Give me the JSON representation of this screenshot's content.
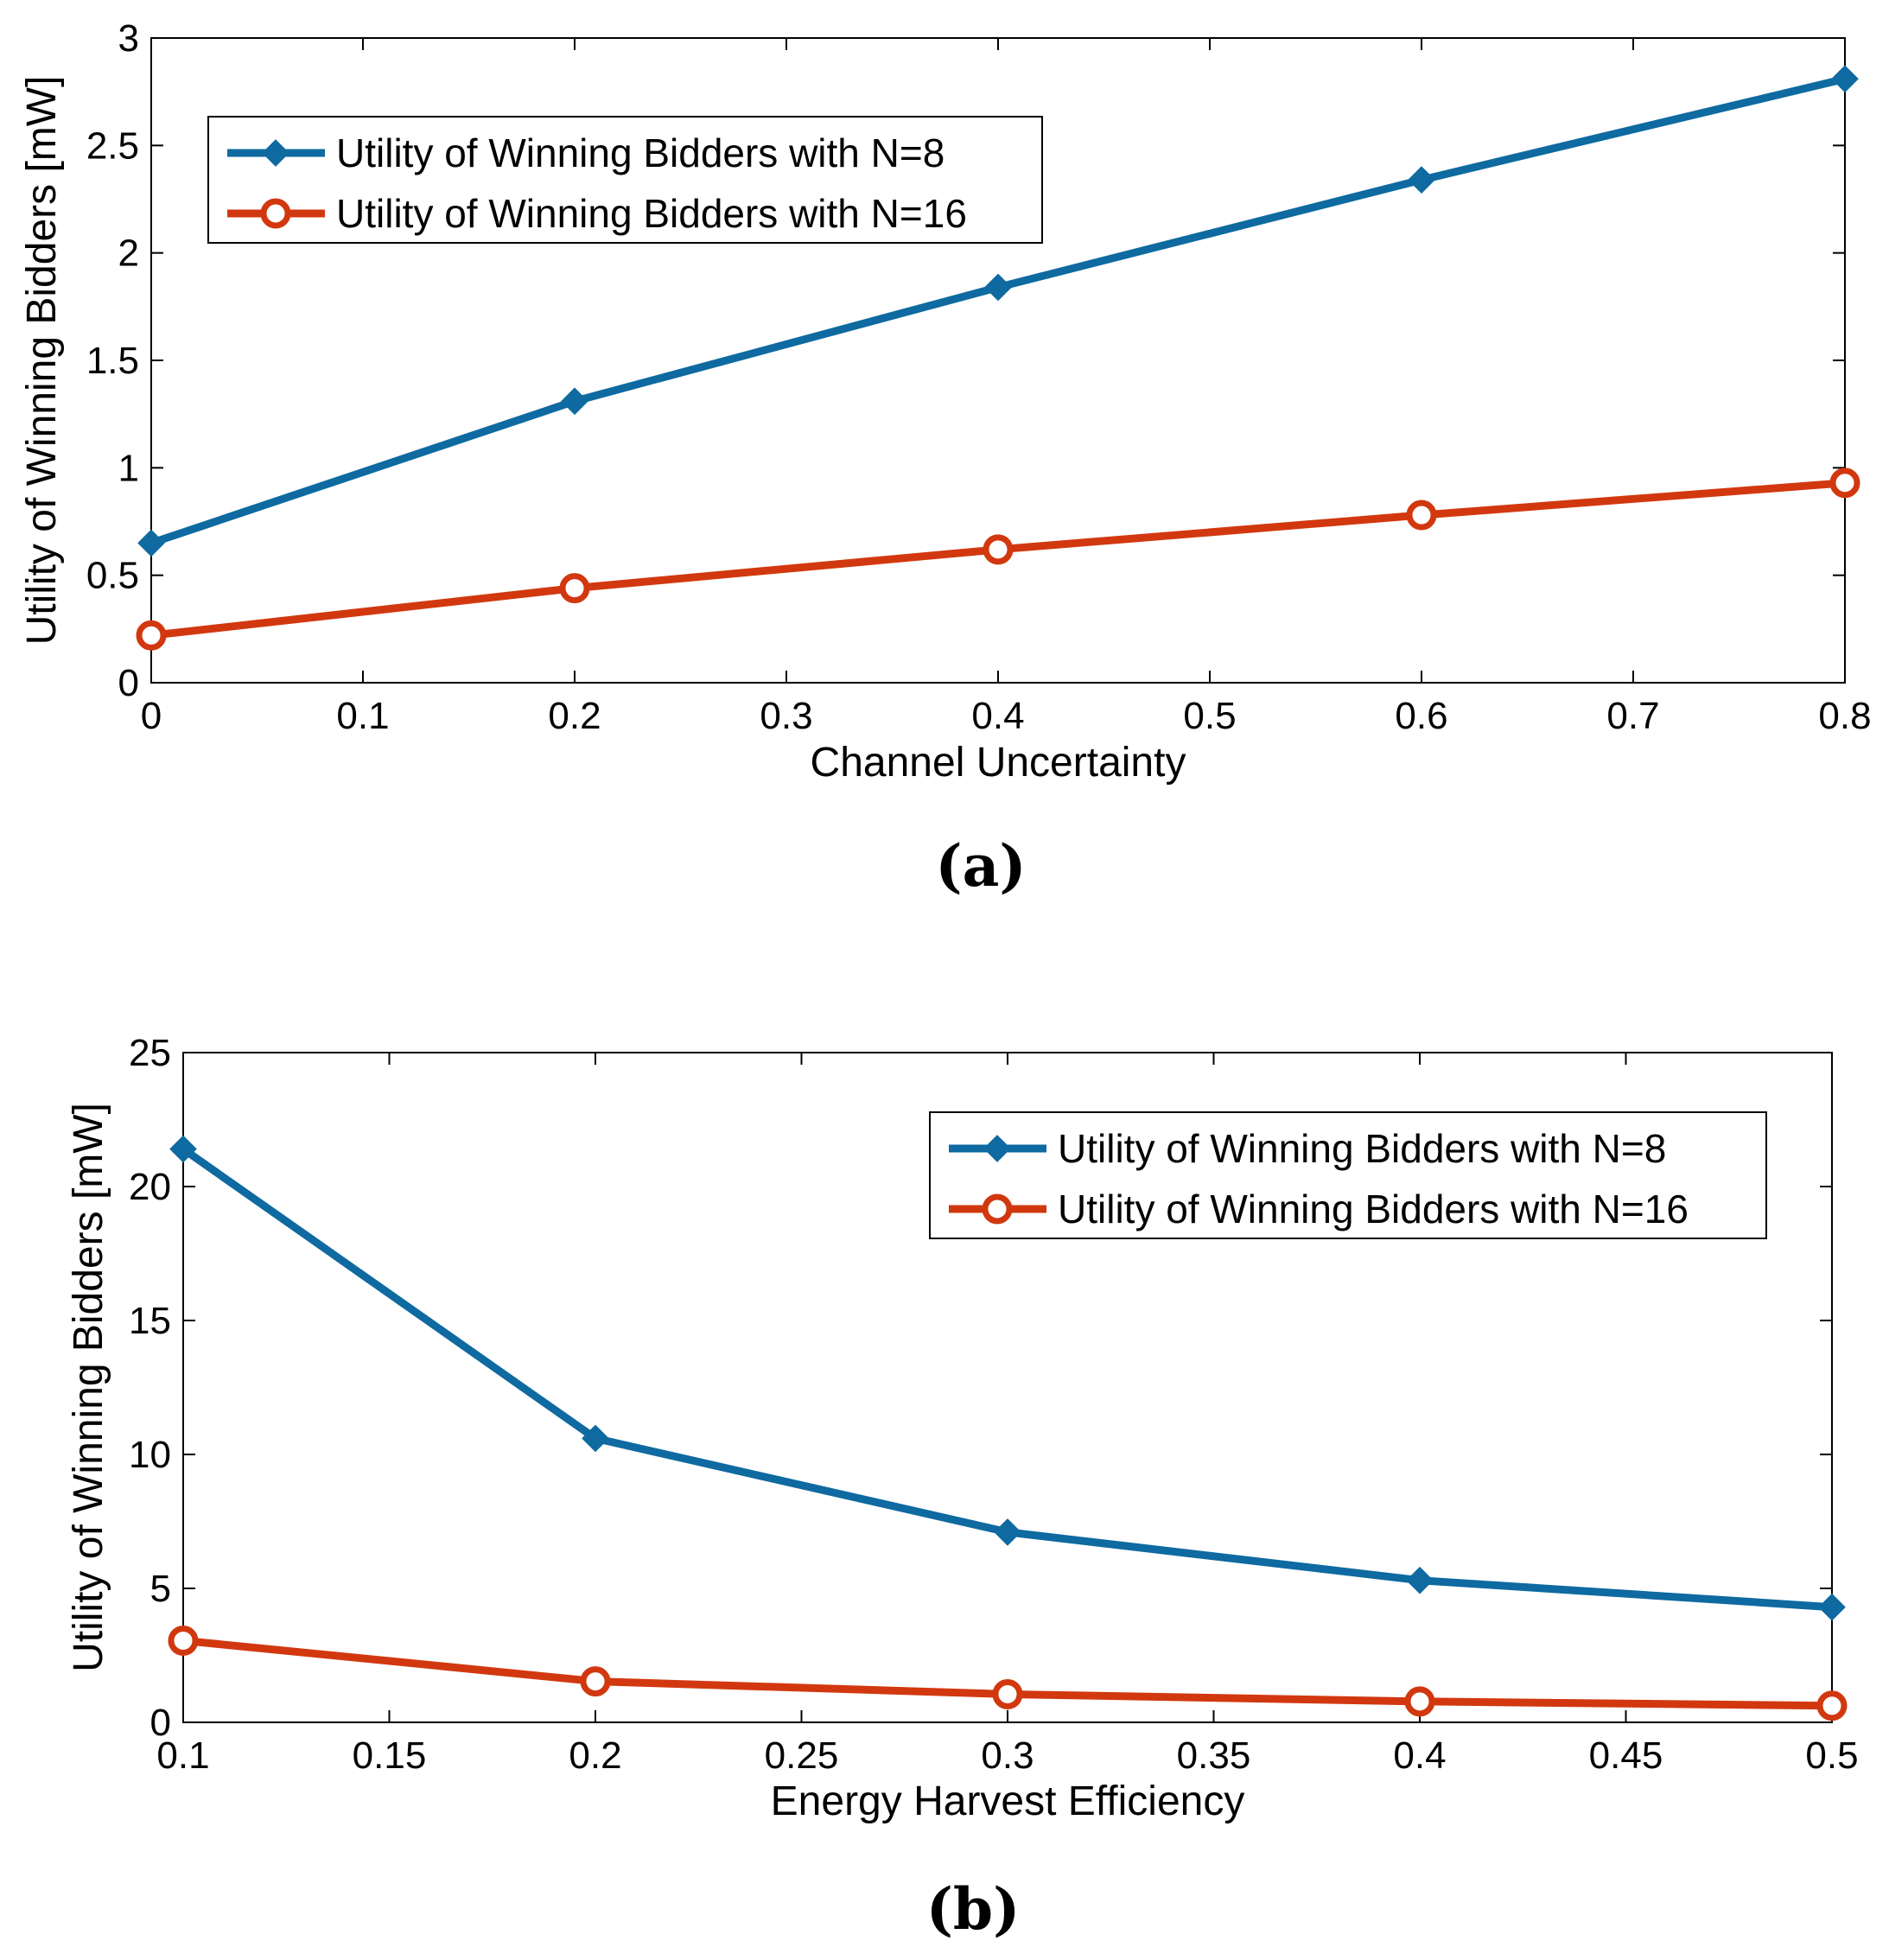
{
  "chart_data": [
    {
      "type": "line",
      "caption": "(a)",
      "xlabel": "Channel Uncertainty",
      "ylabel": "Utility of Winning Bidders [mW]",
      "xlim": [
        0,
        0.8
      ],
      "ylim": [
        0,
        3
      ],
      "xticks": [
        0,
        0.1,
        0.2,
        0.3,
        0.4,
        0.5,
        0.6,
        0.7,
        0.8
      ],
      "xtick_labels": [
        "0",
        "0.1",
        "0.2",
        "0.3",
        "0.4",
        "0.5",
        "0.6",
        "0.7",
        "0.8"
      ],
      "yticks": [
        0,
        0.5,
        1,
        1.5,
        2,
        2.5,
        3
      ],
      "ytick_labels": [
        "0",
        "0.5",
        "1",
        "1.5",
        "2",
        "2.5",
        "3"
      ],
      "legend_position": "top-left",
      "x": [
        0,
        0.2,
        0.4,
        0.6,
        0.8
      ],
      "series": [
        {
          "name": "Utility of Winning Bidders with N=8",
          "marker": "diamond",
          "color": "#0e6aa0",
          "values": [
            0.65,
            1.31,
            1.84,
            2.34,
            2.81
          ]
        },
        {
          "name": "Utility of Winning Bidders with N=16",
          "marker": "circle",
          "color": "#d2380f",
          "values": [
            0.22,
            0.44,
            0.62,
            0.78,
            0.93
          ]
        }
      ]
    },
    {
      "type": "line",
      "caption": "(b)",
      "xlabel": "Energy Harvest Efficiency",
      "ylabel": "Utility of Winning Bidders [mW]",
      "xlim": [
        0.1,
        0.5
      ],
      "ylim": [
        0,
        25
      ],
      "xticks": [
        0.1,
        0.15,
        0.2,
        0.25,
        0.3,
        0.35,
        0.4,
        0.45,
        0.5
      ],
      "xtick_labels": [
        "0.1",
        "0.15",
        "0.2",
        "0.25",
        "0.3",
        "0.35",
        "0.4",
        "0.45",
        "0.5"
      ],
      "yticks": [
        0,
        5,
        10,
        15,
        20,
        25
      ],
      "ytick_labels": [
        "0",
        "5",
        "10",
        "15",
        "20",
        "25"
      ],
      "legend_position": "top-right",
      "x": [
        0.1,
        0.2,
        0.3,
        0.4,
        0.5
      ],
      "series": [
        {
          "name": "Utility of Winning Bidders with N=8",
          "marker": "diamond",
          "color": "#0e6aa0",
          "values": [
            21.4,
            10.6,
            7.1,
            5.3,
            4.3
          ]
        },
        {
          "name": "Utility of Winning Bidders with N=16",
          "marker": "circle",
          "color": "#d2380f",
          "values": [
            3.05,
            1.53,
            1.05,
            0.78,
            0.62
          ]
        }
      ]
    }
  ]
}
